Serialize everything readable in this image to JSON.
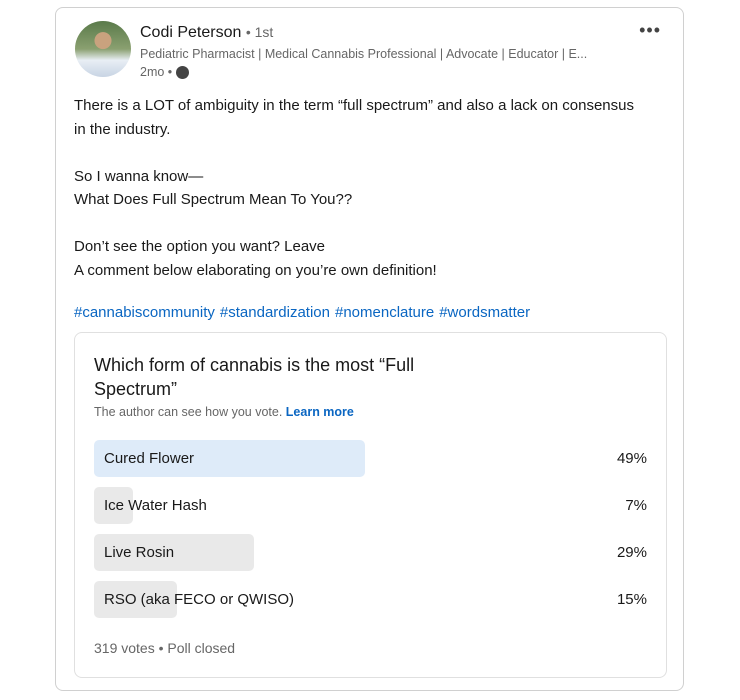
{
  "author": {
    "name": "Codi Peterson",
    "degree": "• 1st",
    "headline": "Pediatric Pharmacist | Medical Cannabis Professional | Advocate | Educator | E...",
    "time": "2mo •"
  },
  "post": {
    "text": "There is a LOT of ambiguity in the term “full spectrum” and also a lack on consensus in the industry.\n\nSo I wanna know—\nWhat Does Full Spectrum Mean To You??\n\nDon’t see the option you want? Leave\nA comment below elaborating on you’re own definition!",
    "hashtags": [
      "#cannabiscommunity",
      "#standardization",
      "#nomenclature",
      "#wordsmatter"
    ]
  },
  "poll": {
    "question": "Which form of cannabis is the most “Full Spectrum”",
    "note": "The author can see how you vote.",
    "learn_more": "Learn more",
    "options": [
      {
        "label": "Cured Flower",
        "percent": 49,
        "pct_label": "49%",
        "leading": true
      },
      {
        "label": "Ice Water Hash",
        "percent": 7,
        "pct_label": "7%"
      },
      {
        "label": "Live Rosin",
        "percent": 29,
        "pct_label": "29%"
      },
      {
        "label": "RSO (aka FECO or QWISO)",
        "percent": 15,
        "pct_label": "15%"
      }
    ],
    "footer": "319 votes • Poll closed"
  },
  "colors": {
    "link": "#0a66c2",
    "leading_bar": "#deebf9",
    "bar": "#e9e9e9"
  }
}
